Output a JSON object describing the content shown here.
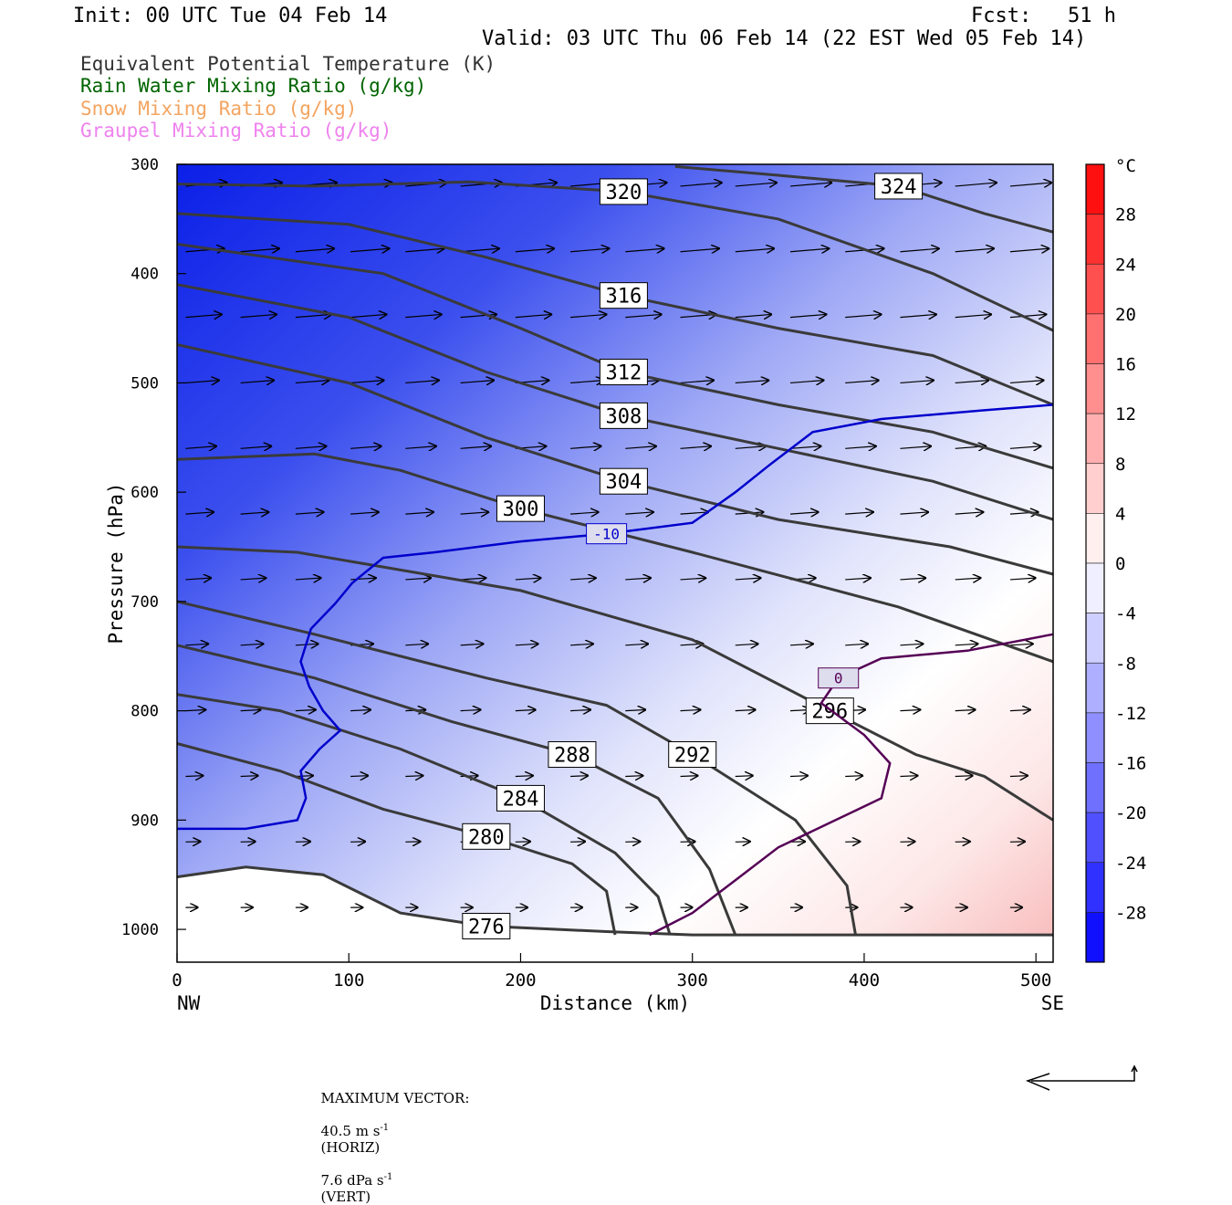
{
  "header": {
    "init": "Init: 00 UTC Tue 04 Feb 14",
    "fcst": "Fcst:   51 h",
    "valid": "Valid: 03 UTC Thu 06 Feb 14 (22 EST Wed 05 Feb 14)"
  },
  "legend": [
    {
      "label": "Equivalent Potential Temperature (K)",
      "color": "#333333"
    },
    {
      "label": "Rain Water Mixing Ratio (g/kg)",
      "color": "#006400"
    },
    {
      "label": "Snow Mixing Ratio (g/kg)",
      "color": "#f4a460"
    },
    {
      "label": "Graupel Mixing Ratio (g/kg)",
      "color": "#ee82ee"
    }
  ],
  "footer": {
    "max_vector_label": "MAXIMUM VECTOR:",
    "horiz_value": "40.5 m s",
    "horiz_exp": "-1",
    "horiz_unit": "(HORIZ)",
    "vert_value": "7.6 dPa s",
    "vert_exp": "-1",
    "vert_unit": "(VERT)"
  },
  "chart_data": {
    "type": "cross-section",
    "xlabel": "Distance (km)",
    "ylabel": "Pressure (hPa)",
    "xlim": [
      0,
      510
    ],
    "ylim": [
      1030,
      300
    ],
    "x_ticks": [
      0,
      100,
      200,
      300,
      400,
      500
    ],
    "y_ticks": [
      300,
      400,
      500,
      600,
      700,
      800,
      900,
      1000
    ],
    "x_left_label": "NW",
    "x_right_label": "SE",
    "colorbar": {
      "unit": "°C",
      "ticks": [
        28,
        24,
        20,
        16,
        12,
        8,
        4,
        0,
        -4,
        -8,
        -12,
        -16,
        -20,
        -24,
        -28
      ],
      "range": [
        -32,
        32
      ]
    },
    "theta_e_contours": [
      {
        "label": "276",
        "points": [
          [
            0,
            952
          ],
          [
            40,
            943
          ],
          [
            85,
            950
          ],
          [
            130,
            985
          ],
          [
            180,
            997
          ],
          [
            250,
            1002
          ],
          [
            300,
            1005
          ],
          [
            510,
            1005
          ]
        ]
      },
      {
        "label": "280",
        "points": [
          [
            0,
            830
          ],
          [
            60,
            855
          ],
          [
            120,
            890
          ],
          [
            180,
            915
          ],
          [
            230,
            940
          ],
          [
            250,
            965
          ],
          [
            255,
            1005
          ]
        ]
      },
      {
        "label": "284",
        "points": [
          [
            0,
            785
          ],
          [
            60,
            800
          ],
          [
            130,
            835
          ],
          [
            200,
            880
          ],
          [
            255,
            930
          ],
          [
            280,
            970
          ],
          [
            287,
            1005
          ]
        ]
      },
      {
        "label": "288",
        "points": [
          [
            0,
            740
          ],
          [
            80,
            770
          ],
          [
            160,
            810
          ],
          [
            230,
            840
          ],
          [
            280,
            880
          ],
          [
            310,
            945
          ],
          [
            325,
            1005
          ]
        ]
      },
      {
        "label": "292",
        "points": [
          [
            0,
            700
          ],
          [
            80,
            730
          ],
          [
            180,
            770
          ],
          [
            250,
            795
          ],
          [
            300,
            840
          ],
          [
            360,
            900
          ],
          [
            390,
            960
          ],
          [
            395,
            1005
          ]
        ]
      },
      {
        "label": "296",
        "points": [
          [
            0,
            650
          ],
          [
            70,
            655
          ],
          [
            200,
            690
          ],
          [
            300,
            735
          ],
          [
            380,
            800
          ],
          [
            430,
            840
          ],
          [
            470,
            860
          ],
          [
            510,
            900
          ]
        ]
      },
      {
        "label": "300",
        "points": [
          [
            0,
            570
          ],
          [
            80,
            565
          ],
          [
            130,
            580
          ],
          [
            200,
            615
          ],
          [
            300,
            655
          ],
          [
            420,
            705
          ],
          [
            510,
            755
          ]
        ]
      },
      {
        "label": "304",
        "points": [
          [
            0,
            465
          ],
          [
            100,
            500
          ],
          [
            180,
            550
          ],
          [
            260,
            590
          ],
          [
            350,
            625
          ],
          [
            450,
            650
          ],
          [
            510,
            675
          ]
        ]
      },
      {
        "label": "308",
        "points": [
          [
            0,
            410
          ],
          [
            100,
            440
          ],
          [
            180,
            490
          ],
          [
            260,
            530
          ],
          [
            350,
            560
          ],
          [
            440,
            590
          ],
          [
            510,
            625
          ]
        ]
      },
      {
        "label": "312",
        "points": [
          [
            0,
            373
          ],
          [
            120,
            400
          ],
          [
            200,
            450
          ],
          [
            260,
            490
          ],
          [
            350,
            520
          ],
          [
            440,
            545
          ],
          [
            510,
            578
          ]
        ]
      },
      {
        "label": "316",
        "points": [
          [
            0,
            345
          ],
          [
            100,
            355
          ],
          [
            180,
            385
          ],
          [
            260,
            420
          ],
          [
            350,
            450
          ],
          [
            440,
            475
          ],
          [
            510,
            520
          ]
        ]
      },
      {
        "label": "320",
        "points": [
          [
            0,
            318
          ],
          [
            80,
            320
          ],
          [
            170,
            316
          ],
          [
            260,
            325
          ],
          [
            350,
            350
          ],
          [
            440,
            400
          ],
          [
            510,
            452
          ]
        ]
      },
      {
        "label": "324",
        "points": [
          [
            290,
            302
          ],
          [
            350,
            310
          ],
          [
            420,
            320
          ],
          [
            470,
            345
          ],
          [
            510,
            362
          ]
        ]
      }
    ],
    "temperature_contours": [
      {
        "label": "-10",
        "color": "#0000cc",
        "points": [
          [
            0,
            908
          ],
          [
            40,
            908
          ],
          [
            70,
            900
          ],
          [
            75,
            880
          ],
          [
            72,
            855
          ],
          [
            83,
            835
          ],
          [
            95,
            818
          ],
          [
            85,
            800
          ],
          [
            77,
            778
          ],
          [
            72,
            755
          ],
          [
            78,
            725
          ],
          [
            92,
            702
          ],
          [
            102,
            683
          ],
          [
            120,
            660
          ],
          [
            150,
            655
          ],
          [
            200,
            645
          ],
          [
            250,
            638
          ],
          [
            300,
            628
          ],
          [
            325,
            600
          ],
          [
            345,
            575
          ],
          [
            370,
            545
          ],
          [
            410,
            533
          ],
          [
            470,
            525
          ],
          [
            510,
            520
          ]
        ]
      },
      {
        "label": "0",
        "color": "#550055",
        "points": [
          [
            275,
            1005
          ],
          [
            300,
            985
          ],
          [
            325,
            955
          ],
          [
            350,
            925
          ],
          [
            390,
            895
          ],
          [
            410,
            880
          ],
          [
            415,
            848
          ],
          [
            400,
            822
          ],
          [
            375,
            793
          ],
          [
            385,
            770
          ],
          [
            410,
            752
          ],
          [
            460,
            745
          ],
          [
            510,
            730
          ]
        ]
      }
    ],
    "wind_vectors": "arrows on a regular grid, mostly west-to-east"
  }
}
